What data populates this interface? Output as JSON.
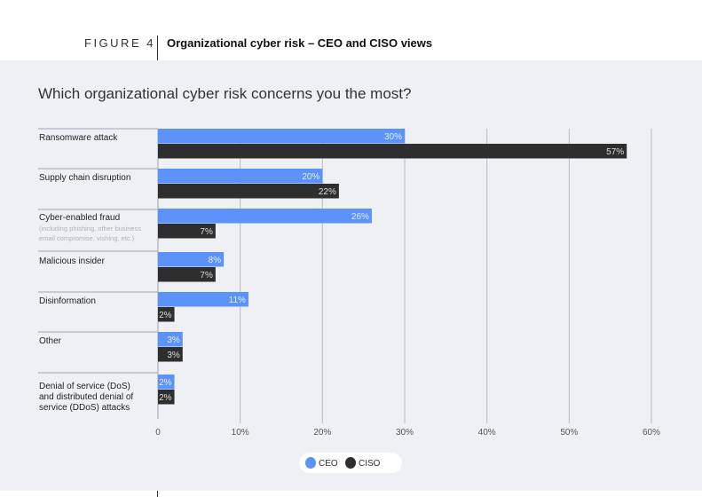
{
  "header": {
    "figure": "FIGURE 4",
    "title": "Organizational cyber risk – CEO and CISO views"
  },
  "chart_data": {
    "type": "bar",
    "orientation": "horizontal",
    "title": "Which organizational cyber risk concerns you the most?",
    "categories": [
      "Ransomware attack",
      "Supply chain disruption",
      "Cyber-enabled fraud",
      "Malicious insider",
      "Disinformation",
      "Other",
      "Denial of service (DoS) and distributed denial of service (DDoS) attacks"
    ],
    "category_notes": [
      "",
      "",
      "(including phishing, other business email compromise, vishing, etc.)",
      "",
      "",
      "",
      ""
    ],
    "series": [
      {
        "name": "CEO",
        "color": "#5b93fb",
        "values": [
          30,
          20,
          26,
          8,
          11,
          3,
          2
        ]
      },
      {
        "name": "CISO",
        "color": "#2e2e2e",
        "values": [
          57,
          22,
          7,
          7,
          2,
          3,
          2
        ]
      }
    ],
    "xlim": [
      0,
      60
    ],
    "xticks": [
      "0",
      "10%",
      "20%",
      "30%",
      "40%",
      "50%",
      "60%"
    ],
    "grid": true,
    "legend": "bottom-center",
    "value_suffix": "%"
  }
}
